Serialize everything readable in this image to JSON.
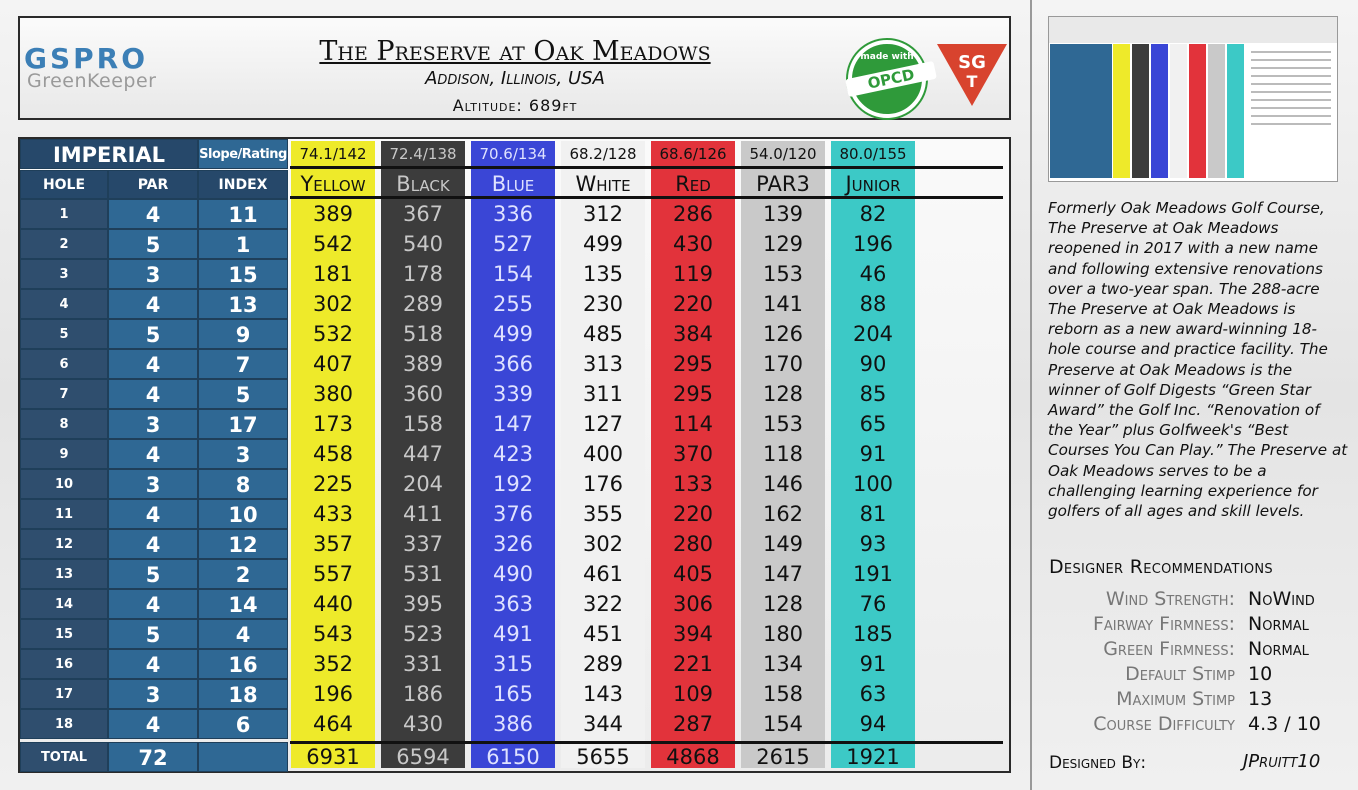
{
  "header": {
    "logo_top": "GSPRO",
    "logo_bottom": "GreenKeeper",
    "title": "The Preserve at Oak Meadows",
    "location": "Addison, Illinois, USA",
    "altitude": "Altitude: 689ft",
    "badge_opcd_top": "made with",
    "badge_opcd_main": "OPCD",
    "badge_sgt_top": "SG",
    "badge_sgt_bottom": "T"
  },
  "scorecard": {
    "system_label": "IMPERIAL",
    "slope_label": "Slope/Rating",
    "col_hole": "HOLE",
    "col_par": "PAR",
    "col_index": "INDEX",
    "total_label": "TOTAL",
    "total_par": "72",
    "holes": [
      {
        "hole": "1",
        "par": "4",
        "index": "11"
      },
      {
        "hole": "2",
        "par": "5",
        "index": "1"
      },
      {
        "hole": "3",
        "par": "3",
        "index": "15"
      },
      {
        "hole": "4",
        "par": "4",
        "index": "13"
      },
      {
        "hole": "5",
        "par": "5",
        "index": "9"
      },
      {
        "hole": "6",
        "par": "4",
        "index": "7"
      },
      {
        "hole": "7",
        "par": "4",
        "index": "5"
      },
      {
        "hole": "8",
        "par": "3",
        "index": "17"
      },
      {
        "hole": "9",
        "par": "4",
        "index": "3"
      },
      {
        "hole": "10",
        "par": "3",
        "index": "8"
      },
      {
        "hole": "11",
        "par": "4",
        "index": "10"
      },
      {
        "hole": "12",
        "par": "4",
        "index": "12"
      },
      {
        "hole": "13",
        "par": "5",
        "index": "2"
      },
      {
        "hole": "14",
        "par": "4",
        "index": "14"
      },
      {
        "hole": "15",
        "par": "5",
        "index": "4"
      },
      {
        "hole": "16",
        "par": "4",
        "index": "16"
      },
      {
        "hole": "17",
        "par": "3",
        "index": "18"
      },
      {
        "hole": "18",
        "par": "4",
        "index": "6"
      }
    ],
    "tees": [
      {
        "name": "Yellow",
        "rating": "74.1/142",
        "bg": "#eeea2a",
        "fg": "#111111",
        "total": "6931",
        "yards": [
          "389",
          "542",
          "181",
          "302",
          "532",
          "407",
          "380",
          "173",
          "458",
          "225",
          "433",
          "357",
          "557",
          "440",
          "543",
          "352",
          "196",
          "464"
        ]
      },
      {
        "name": "Black",
        "rating": "72.4/138",
        "bg": "#3c3c3c",
        "fg": "#c8c8c8",
        "total": "6594",
        "yards": [
          "367",
          "540",
          "178",
          "289",
          "518",
          "389",
          "360",
          "158",
          "447",
          "204",
          "411",
          "337",
          "531",
          "395",
          "523",
          "331",
          "186",
          "430"
        ]
      },
      {
        "name": "Blue",
        "rating": "70.6/134",
        "bg": "#3a46d6",
        "fg": "#dfe2ff",
        "total": "6150",
        "yards": [
          "336",
          "527",
          "154",
          "255",
          "499",
          "366",
          "339",
          "147",
          "423",
          "192",
          "376",
          "326",
          "490",
          "363",
          "491",
          "315",
          "165",
          "386"
        ]
      },
      {
        "name": "White",
        "rating": "68.2/128",
        "bg": "#f1f1f1",
        "fg": "#111111",
        "total": "5655",
        "yards": [
          "312",
          "499",
          "135",
          "230",
          "485",
          "313",
          "311",
          "127",
          "400",
          "176",
          "355",
          "302",
          "461",
          "322",
          "451",
          "289",
          "143",
          "344"
        ]
      },
      {
        "name": "Red",
        "rating": "68.6/126",
        "bg": "#e2333b",
        "fg": "#111111",
        "total": "4868",
        "yards": [
          "286",
          "430",
          "119",
          "220",
          "384",
          "295",
          "295",
          "114",
          "370",
          "133",
          "220",
          "280",
          "405",
          "306",
          "394",
          "221",
          "109",
          "287"
        ]
      },
      {
        "name": "PAR3",
        "rating": "54.0/120",
        "bg": "#c9c9c9",
        "fg": "#111111",
        "total": "2615",
        "yards": [
          "139",
          "129",
          "153",
          "141",
          "126",
          "170",
          "128",
          "153",
          "118",
          "146",
          "162",
          "149",
          "147",
          "128",
          "180",
          "134",
          "158",
          "154"
        ]
      },
      {
        "name": "Junior",
        "rating": "80.0/155",
        "bg": "#3cc9c6",
        "fg": "#111111",
        "total": "1921",
        "yards": [
          "82",
          "196",
          "46",
          "88",
          "204",
          "90",
          "85",
          "65",
          "91",
          "100",
          "81",
          "93",
          "191",
          "76",
          "185",
          "91",
          "63",
          "94"
        ]
      }
    ]
  },
  "description": "Formerly Oak Meadows Golf Course, The Preserve at Oak Meadows reopened in 2017 with a new name and following extensive renovations over a two-year span. The 288-acre The Preserve at Oak Meadows is reborn as a new award-winning 18-hole course and practice facility. The Preserve at Oak Meadows is the winner of Golf Digests “Green Star Award” the Golf Inc. “Renovation of the Year” plus Golfweek's “Best Courses You Can Play.” The Preserve at Oak Meadows serves to be a challenging learning experience for golfers of all ages and skill levels.",
  "recommendations": {
    "title": "Designer Recommendations",
    "items": [
      {
        "label": "Wind Strength:",
        "value": "NoWind"
      },
      {
        "label": "Fairway Firmness:",
        "value": "Normal"
      },
      {
        "label": "Green Firmness:",
        "value": "Normal"
      },
      {
        "label": "Default Stimp",
        "value": "10"
      },
      {
        "label": "Maximum Stimp",
        "value": "13"
      },
      {
        "label": "Course Difficulty",
        "value": "4.3 / 10"
      }
    ]
  },
  "designed_by_label": "Designed By:",
  "designer": "JPruitt10"
}
